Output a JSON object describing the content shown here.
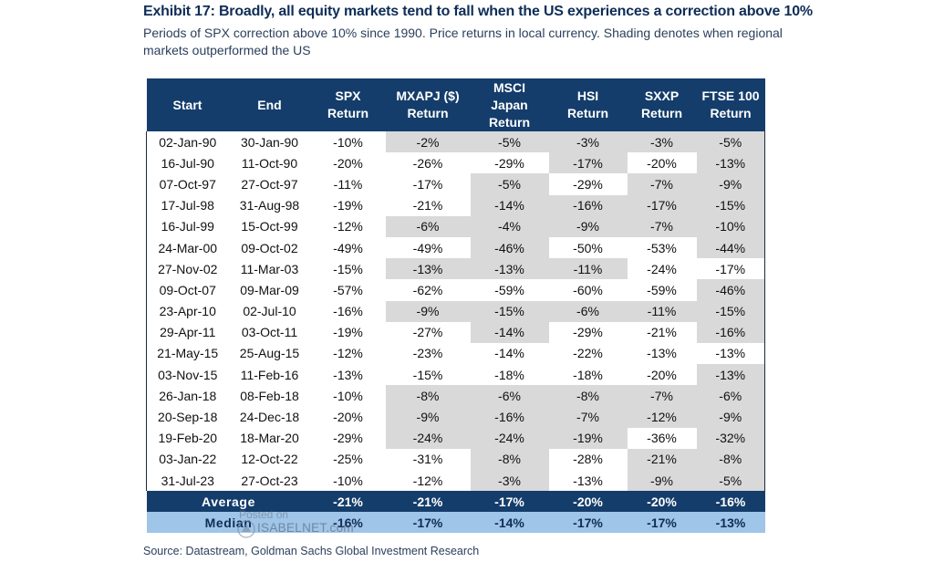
{
  "title": "Exhibit 17: Broadly, all equity markets tend to fall when the US experiences a correction above 10%",
  "subtitle": "Periods of SPX correction above 10% since 1990. Price returns in local currency. Shading denotes when regional markets outperformed the US",
  "source": "Source: Datastream, Goldman Sachs Global Investment Research",
  "watermark": {
    "line1": "Posted on",
    "line2": "ISABELNET.com"
  },
  "colors": {
    "header_bg": "#143d6b",
    "median_bg": "#9fc5e8",
    "shade": "#d9d9d9"
  },
  "chart_data": {
    "type": "table",
    "title": "Exhibit 17: Broadly, all equity markets tend to fall when the US experiences a correction above 10%",
    "headers": [
      [
        "Start"
      ],
      [
        "End"
      ],
      [
        "SPX",
        "Return"
      ],
      [
        "MXAPJ ($)",
        "Return"
      ],
      [
        "MSCI",
        "Japan",
        "Return"
      ],
      [
        "HSI",
        "Return"
      ],
      [
        "SXXP",
        "Return"
      ],
      [
        "FTSE 100",
        "Return"
      ]
    ],
    "rows": [
      {
        "cells": [
          "02-Jan-90",
          "30-Jan-90",
          "-10%",
          "-2%",
          "-5%",
          "-3%",
          "-3%",
          "-5%"
        ],
        "shaded": [
          false,
          false,
          false,
          true,
          true,
          true,
          true,
          true
        ]
      },
      {
        "cells": [
          "16-Jul-90",
          "11-Oct-90",
          "-20%",
          "-26%",
          "-29%",
          "-17%",
          "-20%",
          "-13%"
        ],
        "shaded": [
          false,
          false,
          false,
          false,
          false,
          true,
          false,
          true
        ]
      },
      {
        "cells": [
          "07-Oct-97",
          "27-Oct-97",
          "-11%",
          "-17%",
          "-5%",
          "-29%",
          "-7%",
          "-9%"
        ],
        "shaded": [
          false,
          false,
          false,
          false,
          true,
          false,
          true,
          true
        ]
      },
      {
        "cells": [
          "17-Jul-98",
          "31-Aug-98",
          "-19%",
          "-21%",
          "-14%",
          "-16%",
          "-17%",
          "-15%"
        ],
        "shaded": [
          false,
          false,
          false,
          false,
          true,
          true,
          true,
          true
        ]
      },
      {
        "cells": [
          "16-Jul-99",
          "15-Oct-99",
          "-12%",
          "-6%",
          "-4%",
          "-9%",
          "-7%",
          "-10%"
        ],
        "shaded": [
          false,
          false,
          false,
          true,
          true,
          true,
          true,
          true
        ]
      },
      {
        "cells": [
          "24-Mar-00",
          "09-Oct-02",
          "-49%",
          "-49%",
          "-46%",
          "-50%",
          "-53%",
          "-44%"
        ],
        "shaded": [
          false,
          false,
          false,
          false,
          true,
          false,
          false,
          true
        ]
      },
      {
        "cells": [
          "27-Nov-02",
          "11-Mar-03",
          "-15%",
          "-13%",
          "-13%",
          "-11%",
          "-24%",
          "-17%"
        ],
        "shaded": [
          false,
          false,
          false,
          true,
          true,
          true,
          false,
          false
        ]
      },
      {
        "cells": [
          "09-Oct-07",
          "09-Mar-09",
          "-57%",
          "-62%",
          "-59%",
          "-60%",
          "-59%",
          "-46%"
        ],
        "shaded": [
          false,
          false,
          false,
          false,
          false,
          false,
          false,
          true
        ]
      },
      {
        "cells": [
          "23-Apr-10",
          "02-Jul-10",
          "-16%",
          "-9%",
          "-15%",
          "-6%",
          "-11%",
          "-15%"
        ],
        "shaded": [
          false,
          false,
          false,
          true,
          true,
          true,
          true,
          true
        ]
      },
      {
        "cells": [
          "29-Apr-11",
          "03-Oct-11",
          "-19%",
          "-27%",
          "-14%",
          "-29%",
          "-21%",
          "-16%"
        ],
        "shaded": [
          false,
          false,
          false,
          false,
          true,
          false,
          false,
          true
        ]
      },
      {
        "cells": [
          "21-May-15",
          "25-Aug-15",
          "-12%",
          "-23%",
          "-14%",
          "-22%",
          "-13%",
          "-13%"
        ],
        "shaded": [
          false,
          false,
          false,
          false,
          false,
          false,
          false,
          false
        ]
      },
      {
        "cells": [
          "03-Nov-15",
          "11-Feb-16",
          "-13%",
          "-15%",
          "-18%",
          "-18%",
          "-20%",
          "-13%"
        ],
        "shaded": [
          false,
          false,
          false,
          false,
          false,
          false,
          false,
          true
        ]
      },
      {
        "cells": [
          "26-Jan-18",
          "08-Feb-18",
          "-10%",
          "-8%",
          "-6%",
          "-8%",
          "-7%",
          "-6%"
        ],
        "shaded": [
          false,
          false,
          false,
          true,
          true,
          true,
          true,
          true
        ]
      },
      {
        "cells": [
          "20-Sep-18",
          "24-Dec-18",
          "-20%",
          "-9%",
          "-16%",
          "-7%",
          "-12%",
          "-9%"
        ],
        "shaded": [
          false,
          false,
          false,
          true,
          true,
          true,
          true,
          true
        ]
      },
      {
        "cells": [
          "19-Feb-20",
          "18-Mar-20",
          "-29%",
          "-24%",
          "-24%",
          "-19%",
          "-36%",
          "-32%"
        ],
        "shaded": [
          false,
          false,
          false,
          true,
          true,
          true,
          false,
          true
        ]
      },
      {
        "cells": [
          "03-Jan-22",
          "12-Oct-22",
          "-25%",
          "-31%",
          "-8%",
          "-28%",
          "-21%",
          "-8%"
        ],
        "shaded": [
          false,
          false,
          false,
          false,
          true,
          false,
          true,
          true
        ]
      },
      {
        "cells": [
          "31-Jul-23",
          "27-Oct-23",
          "-10%",
          "-12%",
          "-3%",
          "-13%",
          "-9%",
          "-5%"
        ],
        "shaded": [
          false,
          false,
          false,
          false,
          true,
          false,
          true,
          true
        ]
      }
    ],
    "summary": [
      {
        "label": "Average",
        "values": [
          "-21%",
          "-21%",
          "-17%",
          "-20%",
          "-20%",
          "-16%"
        ]
      },
      {
        "label": "Median",
        "values": [
          "-16%",
          "-17%",
          "-14%",
          "-17%",
          "-17%",
          "-13%"
        ]
      }
    ]
  }
}
